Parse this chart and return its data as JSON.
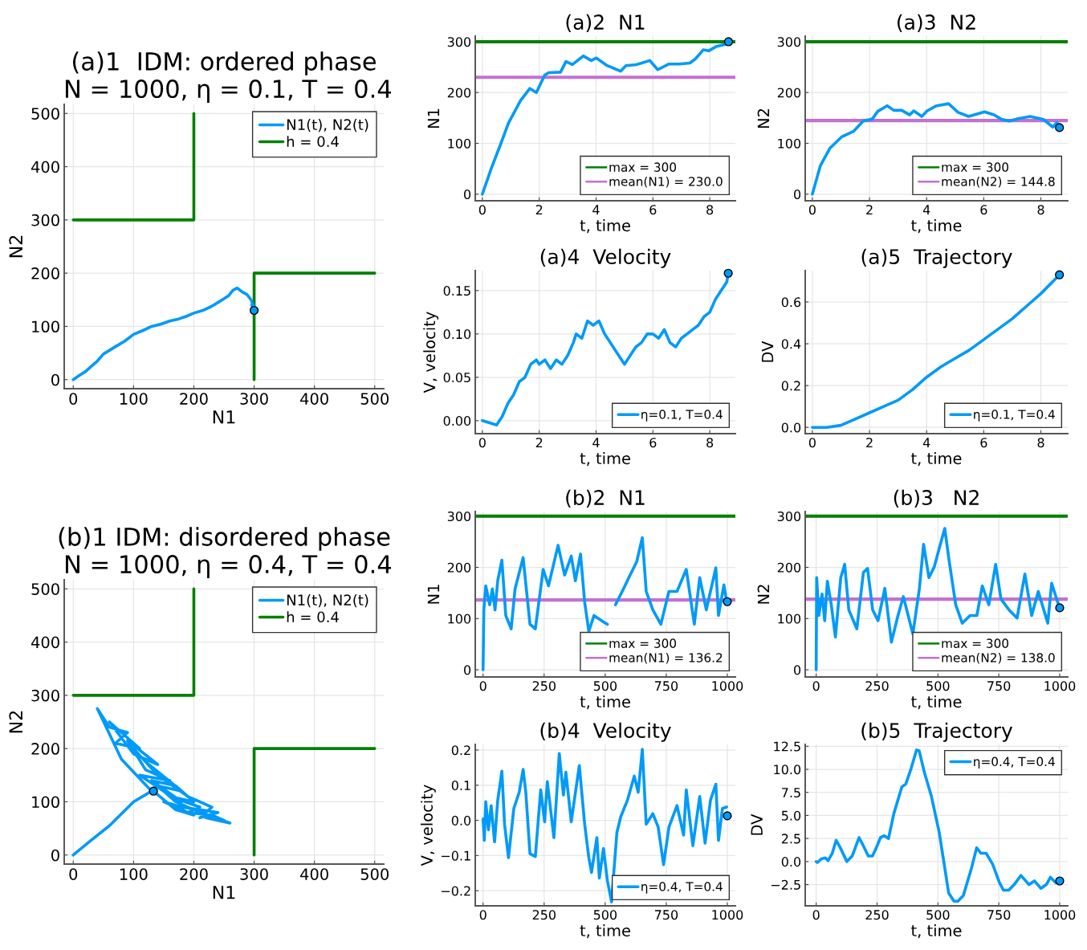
{
  "chart_data": [
    {
      "type": "line",
      "title": "(a)1  IDM: ordered phase\n N = 1000, η = 0.1, T = 0.4",
      "xlabel": "N1",
      "ylabel": "N2",
      "xlim": [
        -15,
        515
      ],
      "ylim": [
        -17,
        517
      ],
      "xticks": [
        0,
        100,
        200,
        300,
        400,
        500
      ],
      "yticks": [
        0,
        100,
        200,
        300,
        400,
        500
      ],
      "grid": true,
      "legend": "top right",
      "series": [
        {
          "name": "N1(t), N2(t)",
          "color": "#009af9",
          "x": [
            0,
            10,
            20,
            30,
            40,
            50,
            70,
            85,
            100,
            115,
            130,
            145,
            160,
            175,
            190,
            200,
            215,
            230,
            240,
            250,
            258,
            265,
            272,
            280,
            288,
            295,
            300,
            296,
            300
          ],
          "values": [
            0,
            8,
            15,
            25,
            35,
            48,
            62,
            72,
            85,
            92,
            100,
            104,
            110,
            114,
            120,
            125,
            130,
            138,
            145,
            152,
            158,
            168,
            172,
            165,
            160,
            150,
            135,
            140,
            130
          ]
        },
        {
          "name": "h = 0.4",
          "color": "#008000",
          "x": [
            0,
            200,
            200,
            null,
            300,
            300,
            500
          ],
          "values": [
            300,
            300,
            500,
            null,
            0,
            200,
            200
          ]
        },
        {
          "type": "scatter",
          "color": "#009af9",
          "marker": "circle",
          "x": [
            300
          ],
          "values": [
            130
          ]
        }
      ]
    },
    {
      "type": "line",
      "title": "(a)2  N1",
      "xlabel": "t, time",
      "ylabel": "N1",
      "xlim": [
        -0.25,
        8.9
      ],
      "ylim": [
        -13,
        311
      ],
      "xticks": [
        0,
        2,
        4,
        6,
        8
      ],
      "yticks": [
        0,
        100,
        200,
        300
      ],
      "grid": true,
      "legend": "bottom right",
      "series": [
        {
          "color": "#009af9",
          "x": [
            0,
            0.31,
            0.64,
            0.92,
            1.34,
            1.67,
            1.9,
            2.19,
            2.33,
            2.75,
            2.94,
            3.17,
            3.55,
            3.83,
            4.01,
            4.39,
            4.86,
            5.05,
            5.42,
            5.89,
            6.17,
            6.55,
            6.92,
            7.3,
            7.49,
            7.77,
            7.96,
            8.24,
            8.56,
            8.66
          ],
          "values": [
            0,
            50,
            98,
            140,
            184,
            208,
            200,
            234,
            239,
            240,
            261,
            255,
            272,
            263,
            268,
            253,
            242,
            253,
            255,
            263,
            245,
            256,
            256,
            258,
            266,
            284,
            282,
            291,
            295,
            300
          ]
        },
        {
          "type": "scatter",
          "color": "#009af9",
          "marker": "circle",
          "x": [
            8.66
          ],
          "values": [
            300
          ]
        }
      ],
      "ref_lines": [
        {
          "axis": "y",
          "value": 300,
          "label": "max = 300",
          "color": "#008000"
        },
        {
          "axis": "y",
          "value": 230.0,
          "label": "mean(N1) = 230.0",
          "color": "#c271d2"
        }
      ]
    },
    {
      "type": "line",
      "title": "(a)3  N2",
      "xlabel": "t, time",
      "ylabel": "N2",
      "xlim": [
        -0.25,
        8.94
      ],
      "ylim": [
        -13,
        311
      ],
      "xticks": [
        0,
        2,
        4,
        6,
        8
      ],
      "yticks": [
        0,
        100,
        200,
        300
      ],
      "grid": true,
      "legend": "bottom right",
      "series": [
        {
          "color": "#009af9",
          "x": [
            0,
            0.28,
            0.61,
            1.03,
            1.45,
            1.78,
            2.1,
            2.29,
            2.62,
            2.85,
            3.13,
            3.41,
            3.55,
            3.83,
            4.02,
            4.35,
            4.77,
            5.1,
            5.47,
            6.03,
            6.36,
            6.6,
            6.88,
            7.16,
            7.62,
            8.09,
            8.42,
            8.56,
            8.65
          ],
          "values": [
            0,
            56,
            90,
            113,
            124,
            144,
            148,
            163,
            174,
            165,
            165,
            156,
            164,
            153,
            164,
            174,
            178,
            161,
            153,
            162,
            156,
            148,
            144,
            148,
            153,
            147,
            132,
            141,
            131
          ]
        },
        {
          "type": "scatter",
          "color": "#009af9",
          "marker": "circle",
          "x": [
            8.65
          ],
          "values": [
            131
          ]
        }
      ],
      "ref_lines": [
        {
          "axis": "y",
          "value": 300,
          "label": "max = 300",
          "color": "#008000"
        },
        {
          "axis": "y",
          "value": 144.8,
          "label": "mean(N2) = 144.8",
          "color": "#c271d2"
        }
      ]
    },
    {
      "type": "line",
      "title": "(a)4  Velocity",
      "xlabel": "t, time",
      "ylabel": "V, velocity",
      "xlim": [
        -0.25,
        8.9
      ],
      "ylim": [
        -0.015,
        0.173
      ],
      "xticks": [
        0,
        2,
        4,
        6,
        8
      ],
      "yticks": [
        {
          "value": 0,
          "label": "0.00"
        },
        {
          "value": 0.05,
          "label": "0.05"
        },
        {
          "value": 0.1,
          "label": "0.10"
        },
        {
          "value": 0.15,
          "label": "0.15"
        }
      ],
      "grid": true,
      "legend": "bottom right",
      "series": [
        {
          "name": "η=0.1, T=0.4",
          "color": "#009af9",
          "x": [
            0,
            0.3,
            0.5,
            0.7,
            0.9,
            1.1,
            1.3,
            1.5,
            1.7,
            1.9,
            2.0,
            2.2,
            2.4,
            2.6,
            2.8,
            3.0,
            3.2,
            3.3,
            3.5,
            3.7,
            3.9,
            4.1,
            4.3,
            4.5,
            4.7,
            4.9,
            5.0,
            5.2,
            5.4,
            5.6,
            5.8,
            6.0,
            6.2,
            6.4,
            6.6,
            6.8,
            7.0,
            7.2,
            7.4,
            7.6,
            7.8,
            8.0,
            8.2,
            8.4,
            8.5,
            8.6,
            8.65
          ],
          "values": [
            0,
            -0.003,
            -0.005,
            0.005,
            0.02,
            0.03,
            0.045,
            0.05,
            0.065,
            0.07,
            0.065,
            0.07,
            0.06,
            0.07,
            0.065,
            0.075,
            0.09,
            0.1,
            0.095,
            0.115,
            0.11,
            0.115,
            0.1,
            0.09,
            0.08,
            0.07,
            0.065,
            0.075,
            0.085,
            0.09,
            0.1,
            0.1,
            0.095,
            0.105,
            0.09,
            0.085,
            0.095,
            0.1,
            0.105,
            0.11,
            0.12,
            0.125,
            0.14,
            0.15,
            0.155,
            0.16,
            0.17
          ]
        },
        {
          "type": "scatter",
          "color": "#009af9",
          "marker": "circle",
          "x": [
            8.65
          ],
          "values": [
            0.17
          ]
        }
      ]
    },
    {
      "type": "line",
      "title": "(a)5  Trajectory",
      "xlabel": "t, time",
      "ylabel": "DV",
      "xlim": [
        -0.25,
        8.94
      ],
      "ylim": [
        -0.03,
        0.75
      ],
      "xticks": [
        0,
        2,
        4,
        6,
        8
      ],
      "yticks": [
        {
          "value": 0,
          "label": "0.0"
        },
        0.2,
        0.4,
        0.6
      ],
      "grid": true,
      "legend": "bottom right",
      "series": [
        {
          "name": "η=0.1, T=0.4",
          "color": "#009af9",
          "x": [
            0,
            0.5,
            1.0,
            1.5,
            2,
            2.5,
            3,
            3.5,
            4,
            4.5,
            5,
            5.5,
            6,
            6.5,
            7,
            7.5,
            8,
            8.65
          ],
          "values": [
            0,
            0,
            0.01,
            0.04,
            0.07,
            0.1,
            0.13,
            0.18,
            0.24,
            0.29,
            0.33,
            0.37,
            0.42,
            0.47,
            0.52,
            0.58,
            0.64,
            0.73
          ]
        },
        {
          "type": "scatter",
          "color": "#009af9",
          "marker": "circle",
          "x": [
            8.65
          ],
          "values": [
            0.73
          ]
        }
      ]
    },
    {
      "type": "line",
      "title": "(b)1 IDM: disordered phase\n N = 1000, η = 0.4, T = 0.4",
      "xlabel": "N1",
      "ylabel": "N2",
      "xlim": [
        -15,
        515
      ],
      "ylim": [
        -17,
        517
      ],
      "xticks": [
        0,
        100,
        200,
        300,
        400,
        500
      ],
      "yticks": [
        0,
        100,
        200,
        300,
        400,
        500
      ],
      "grid": true,
      "legend": "top right",
      "series": [
        {
          "name": "N1(t), N2(t)",
          "color": "#009af9",
          "x": [
            0,
            30,
            60,
            100,
            130,
            80,
            40,
            60,
            90,
            70,
            110,
            60,
            100,
            140,
            90,
            120,
            160,
            110,
            150,
            180,
            130,
            170,
            200,
            160,
            210,
            190,
            230,
            250,
            220,
            260,
            200,
            170,
            140,
            180,
            120,
            100,
            140,
            190,
            230,
            210,
            240,
            180,
            150,
            200,
            170,
            133
          ],
          "values": [
            0,
            28,
            55,
            100,
            120,
            180,
            275,
            240,
            230,
            210,
            200,
            250,
            190,
            170,
            215,
            160,
            140,
            150,
            120,
            100,
            140,
            130,
            100,
            110,
            90,
            80,
            75,
            65,
            70,
            60,
            85,
            100,
            130,
            120,
            175,
            200,
            150,
            110,
            90,
            70,
            80,
            90,
            100,
            75,
            85,
            120
          ]
        },
        {
          "name": "h = 0.4",
          "color": "#008000",
          "x": [
            0,
            200,
            200,
            null,
            300,
            300,
            500
          ],
          "values": [
            300,
            300,
            500,
            null,
            0,
            200,
            200
          ]
        },
        {
          "type": "scatter",
          "color": "#009af9",
          "marker": "circle",
          "x": [
            133
          ],
          "values": [
            120
          ]
        }
      ]
    },
    {
      "type": "line",
      "title": "(b)2  N1",
      "xlabel": "t, time",
      "ylabel": "N1",
      "xlim": [
        -32,
        1033
      ],
      "ylim": [
        -14,
        309
      ],
      "xticks": [
        0,
        250,
        500,
        750,
        1000
      ],
      "yticks": [
        0,
        100,
        200,
        300
      ],
      "grid": true,
      "legend": "bottom right",
      "series": [
        {
          "color": "#009af9",
          "x": [
            0,
            3,
            11,
            27,
            38,
            49,
            60,
            77,
            93,
            115,
            131,
            164,
            192,
            214,
            246,
            268,
            307,
            334,
            361,
            378,
            399,
            416,
            433,
            454,
            498,
            509,
            526,
            542,
            575,
            597,
            629,
            652,
            668,
            695,
            728,
            761,
            794,
            832,
            865,
            887,
            914,
            953,
            964,
            986,
            997
          ],
          "values": [
            0,
            117,
            164,
            127,
            158,
            117,
            174,
            214,
            106,
            80,
            158,
            219,
            89,
            80,
            196,
            164,
            243,
            185,
            222,
            174,
            226,
            132,
            75,
            106,
            92,
            89,
            null,
            127,
            158,
            180,
            211,
            258,
            153,
            117,
            89,
            153,
            153,
            196,
            89,
            180,
            117,
            199,
            106,
            166,
            134
          ]
        },
        {
          "type": "scatter",
          "color": "#009af9",
          "marker": "circle",
          "x": [
            1000
          ],
          "values": [
            133
          ]
        }
      ],
      "ref_lines": [
        {
          "axis": "y",
          "value": 300,
          "label": "max = 300",
          "color": "#008000"
        },
        {
          "axis": "y",
          "value": 136.2,
          "label": "mean(N1) = 136.2",
          "color": "#c271d2"
        }
      ]
    },
    {
      "type": "line",
      "title": "(b)3   N2",
      "xlabel": "t, time",
      "ylabel": "N2",
      "xlim": [
        -45,
        1033
      ],
      "ylim": [
        -14,
        309
      ],
      "xticks": [
        0,
        250,
        500,
        750,
        1000
      ],
      "yticks": [
        0,
        100,
        200,
        300
      ],
      "grid": true,
      "legend": "bottom right",
      "series": [
        {
          "color": "#009af9",
          "x": [
            0,
            2,
            11,
            24,
            35,
            46,
            62,
            79,
            101,
            117,
            134,
            167,
            194,
            211,
            232,
            254,
            282,
            309,
            336,
            358,
            397,
            424,
            441,
            463,
            485,
            507,
            528,
            545,
            573,
            600,
            632,
            660,
            682,
            709,
            737,
            759,
            792,
            825,
            857,
            885,
            912,
            951,
            967,
            995
          ],
          "values": [
            0,
            180,
            106,
            148,
            96,
            173,
            127,
            64,
            180,
            206,
            117,
            80,
            190,
            198,
            117,
            96,
            159,
            54,
            106,
            143,
            70,
            159,
            245,
            180,
            201,
            240,
            276,
            216,
            127,
            91,
            106,
            106,
            164,
            127,
            206,
            138,
            117,
            101,
            187,
            106,
            153,
            91,
            169,
            127
          ]
        },
        {
          "type": "scatter",
          "color": "#009af9",
          "marker": "circle",
          "x": [
            1000
          ],
          "values": [
            121
          ]
        }
      ],
      "ref_lines": [
        {
          "axis": "y",
          "value": 300,
          "label": "max = 300",
          "color": "#008000"
        },
        {
          "axis": "y",
          "value": 138.0,
          "label": "mean(N2) = 138.0",
          "color": "#c271d2"
        }
      ]
    },
    {
      "type": "line",
      "title": "(b)4  Velocity",
      "xlabel": "t, time",
      "ylabel": "V, velocity",
      "xlim": [
        -32,
        1033
      ],
      "ylim": [
        -0.243,
        0.216
      ],
      "xticks": [
        0,
        250,
        500,
        750,
        1000
      ],
      "yticks": [
        {
          "value": -0.2,
          "label": "−0.2"
        },
        {
          "value": -0.1,
          "label": "−0.1"
        },
        {
          "value": 0,
          "label": "0.0"
        },
        0.1,
        0.2
      ],
      "grid": true,
      "legend": "bottom right",
      "series": [
        {
          "name": "η=0.4, T=0.4",
          "color": "#009af9",
          "x": [
            0,
            5,
            11,
            22,
            33,
            47,
            60,
            77,
            88,
            104,
            126,
            148,
            164,
            175,
            192,
            214,
            236,
            252,
            263,
            290,
            312,
            329,
            339,
            361,
            394,
            416,
            433,
            444,
            466,
            476,
            493,
            509,
            526,
            548,
            564,
            591,
            619,
            635,
            652,
            668,
            695,
            717,
            739,
            761,
            794,
            821,
            832,
            859,
            887,
            909,
            931,
            953,
            964,
            980,
            997
          ],
          "values": [
            0.004,
            -0.057,
            0.053,
            -0.027,
            0.042,
            -0.061,
            0.057,
            0.14,
            -0.011,
            -0.106,
            0.034,
            0.08,
            0.145,
            0.08,
            -0.095,
            -0.103,
            0.087,
            -0.004,
            0.11,
            -0.049,
            0.19,
            0.072,
            0.137,
            -0.004,
            0.156,
            -0.011,
            -0.106,
            -0.148,
            -0.049,
            -0.164,
            -0.08,
            -0.171,
            -0.232,
            -0.034,
            0.011,
            0.057,
            0.126,
            0.08,
            0.202,
            -0.011,
            0.019,
            -0.019,
            -0.126,
            -0.019,
            0.042,
            -0.042,
            0.087,
            -0.072,
            0.068,
            -0.065,
            0.057,
            0.103,
            -0.057,
            0.034,
            0.038
          ]
        },
        {
          "type": "scatter",
          "color": "#009af9",
          "marker": "circle",
          "x": [
            1000
          ],
          "values": [
            0.013
          ]
        }
      ]
    },
    {
      "type": "line",
      "title": "(b)5  Trajectory",
      "xlabel": "t, time",
      "ylabel": "DV",
      "xlim": [
        -45,
        1033
      ],
      "ylim": [
        -4.8,
        12.7
      ],
      "xticks": [
        0,
        250,
        500,
        750,
        1000
      ],
      "yticks": [
        {
          "value": -2.5,
          "label": "−2.5"
        },
        {
          "value": 0,
          "label": "0.0"
        },
        2.5,
        {
          "value": 5,
          "label": "5.0"
        },
        7.5,
        {
          "value": 10,
          "label": "10.0"
        },
        12.5
      ],
      "grid": true,
      "legend": "top right",
      "series": [
        {
          "name": "η=0.4, T=0.4",
          "color": "#009af9",
          "x": [
            0,
            5,
            22,
            38,
            49,
            66,
            82,
            99,
            126,
            148,
            176,
            192,
            214,
            231,
            247,
            264,
            280,
            297,
            319,
            352,
            368,
            390,
            412,
            423,
            445,
            473,
            505,
            527,
            544,
            566,
            582,
            604,
            637,
            659,
            676,
            698,
            725,
            753,
            769,
            791,
            813,
            841,
            874,
            896,
            923,
            945,
            962,
            984
          ],
          "values": [
            0,
            -0.1,
            0.3,
            0.4,
            0.1,
            0.9,
            2.3,
            1.5,
            0.0,
            0.6,
            2.6,
            1.8,
            0.6,
            0.6,
            1.5,
            2.6,
            2.8,
            2.5,
            5.2,
            8.1,
            8.4,
            10.1,
            12.1,
            12.0,
            9.6,
            7.1,
            3.2,
            -0.5,
            -3.4,
            -4.3,
            -4.3,
            -3.7,
            -0.8,
            1.5,
            0.9,
            0.9,
            -0.3,
            -2.3,
            -3.1,
            -3.1,
            -2.5,
            -1.5,
            -2.5,
            -2.1,
            -2.9,
            -2.5,
            -1.7,
            -2.3
          ]
        },
        {
          "type": "scatter",
          "color": "#009af9",
          "marker": "circle",
          "x": [
            1000
          ],
          "values": [
            -2.1
          ]
        }
      ]
    }
  ]
}
